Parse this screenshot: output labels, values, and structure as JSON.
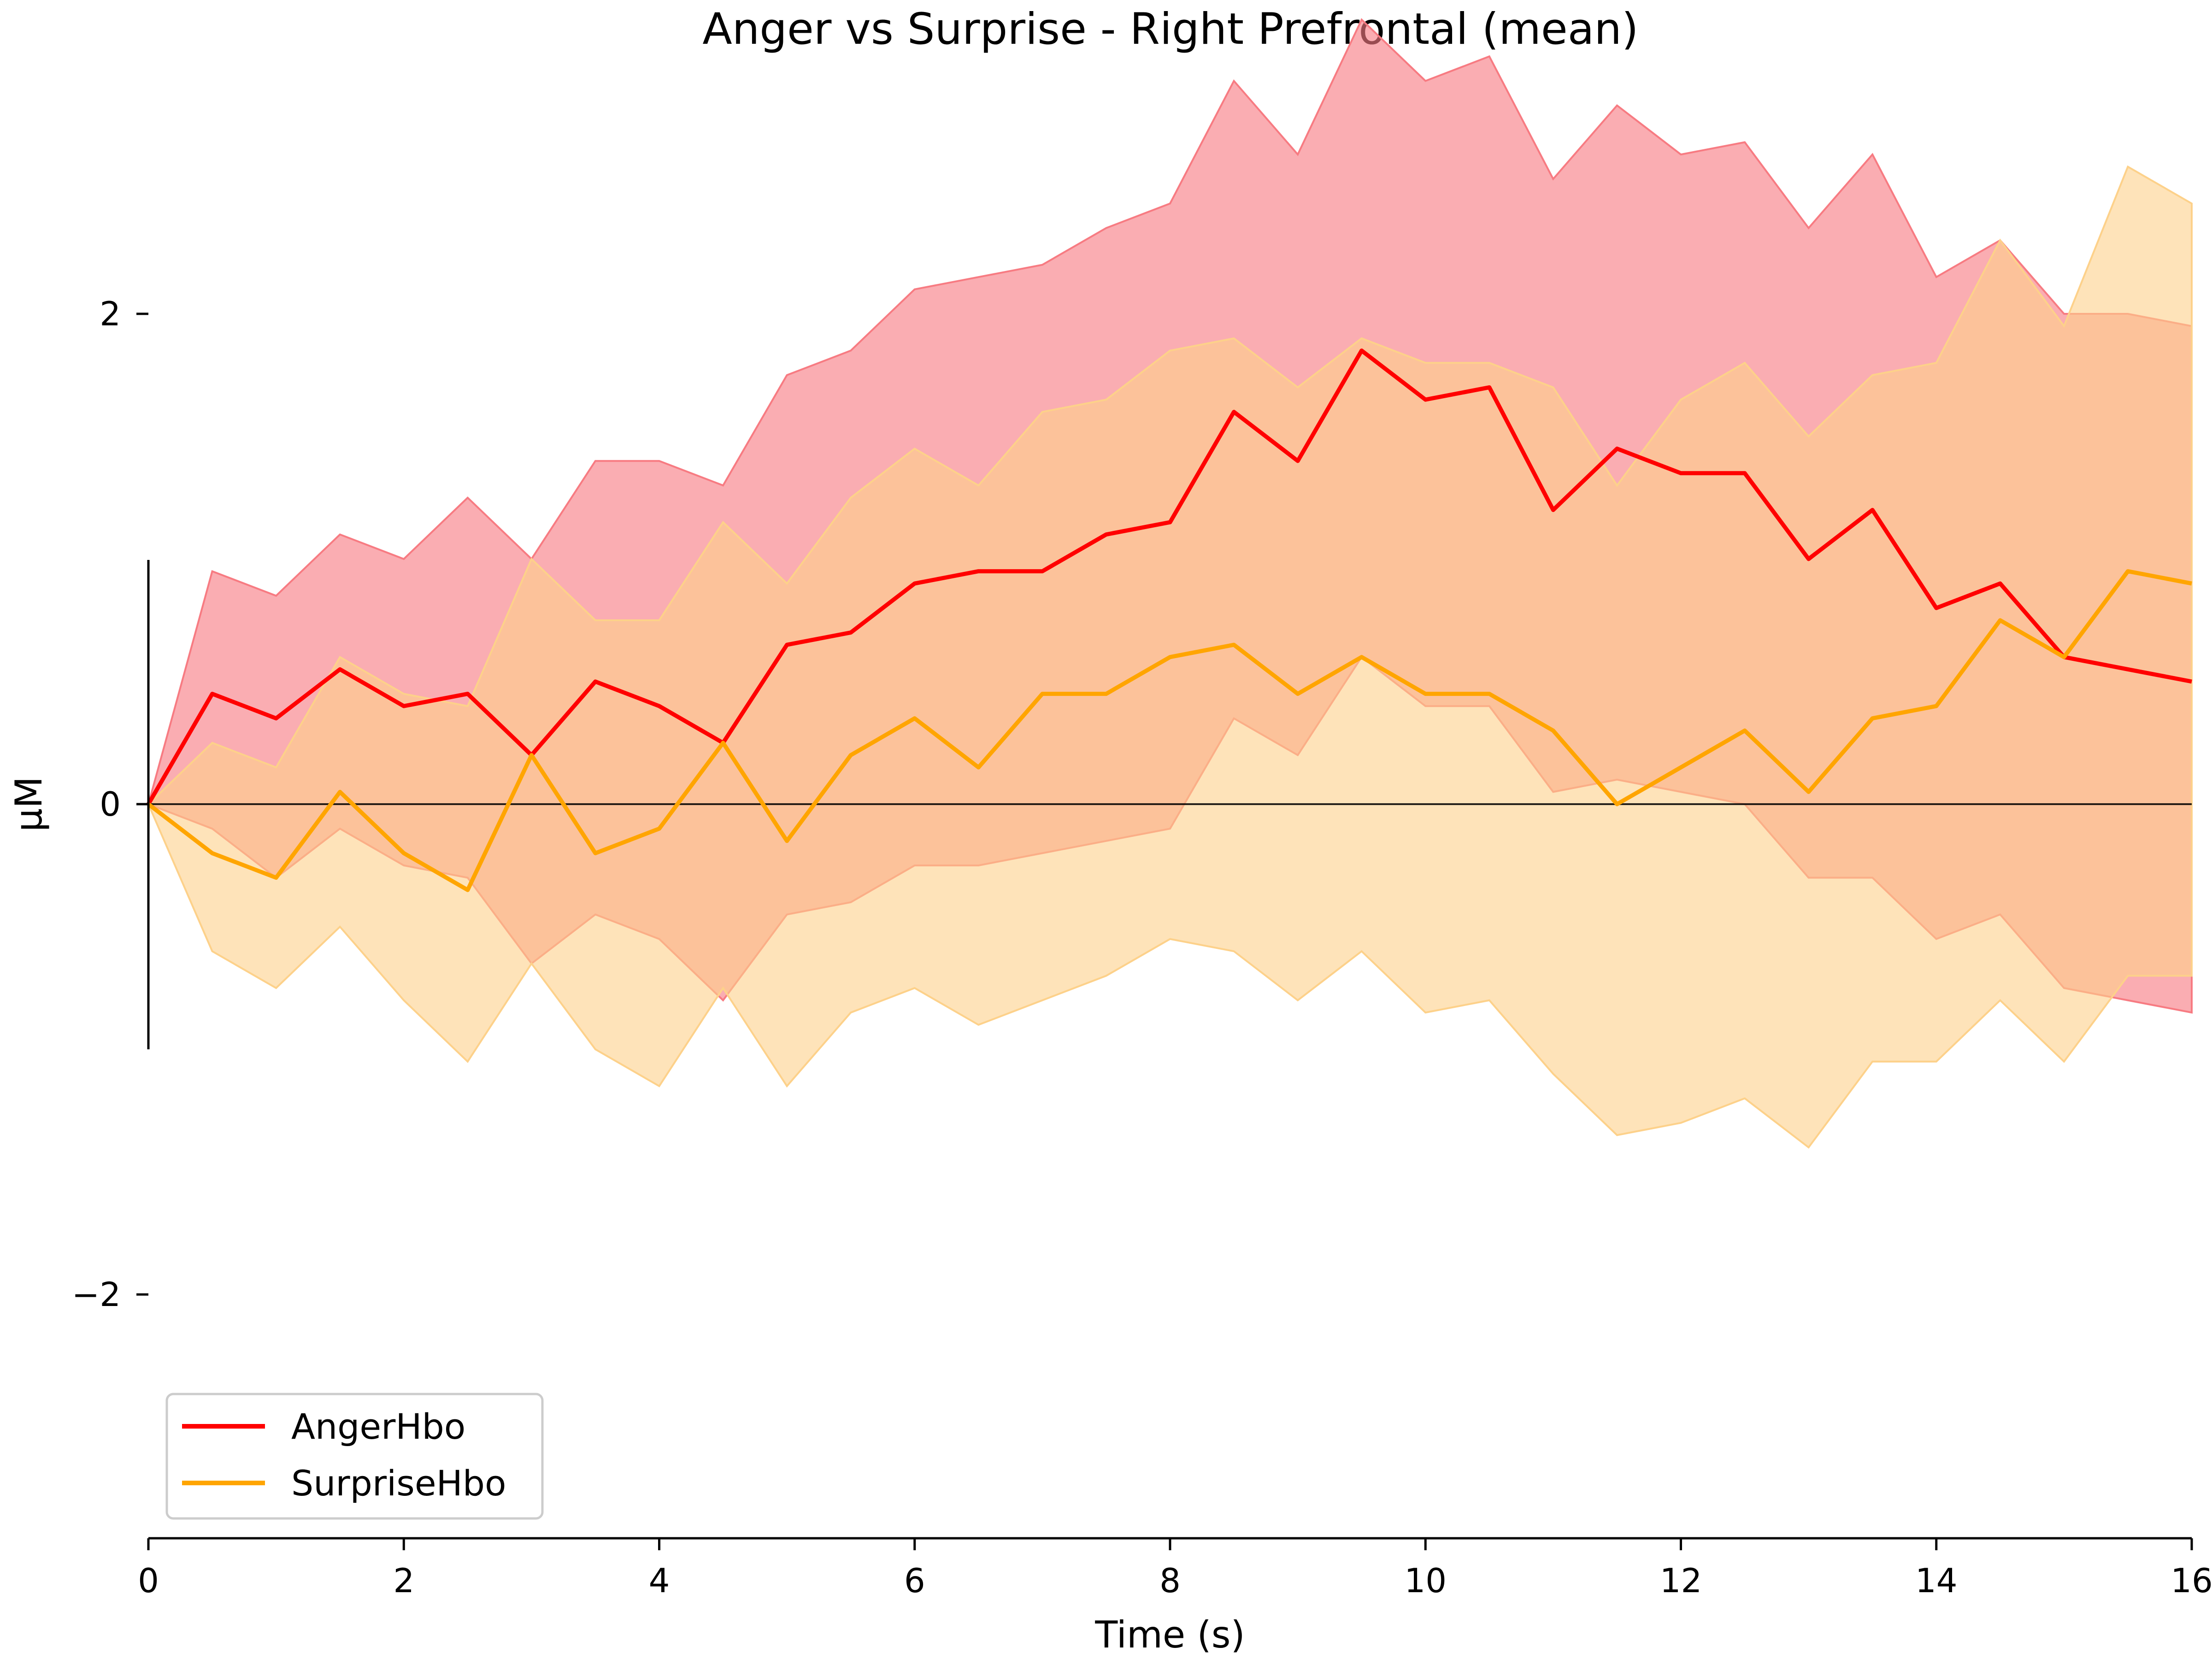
{
  "chart_data": {
    "type": "line",
    "title": "Anger vs Surprise - Right Prefrontal (mean)",
    "xlabel": "Time (s)",
    "ylabel": "µM",
    "xlim": [
      0,
      16
    ],
    "ylim": [
      -3,
      3
    ],
    "x_ticks": [
      "0",
      "2",
      "4",
      "6",
      "8",
      "10",
      "12",
      "14",
      "16"
    ],
    "y_ticks": [
      "−2",
      "0",
      "2"
    ],
    "legend_position": "bottom-left",
    "zero_line": true,
    "grid": false,
    "series": [
      {
        "name": "AngerHbo",
        "color": "#ff0000",
        "band_color": "#f77b82",
        "x": [
          0,
          0.5,
          1,
          1.5,
          2,
          2.5,
          3,
          3.5,
          4,
          4.5,
          5,
          5.5,
          6,
          6.5,
          7,
          7.5,
          8,
          8.5,
          9,
          9.5,
          10,
          10.5,
          11,
          11.5,
          12,
          12.5,
          13,
          13.5,
          14,
          14.5,
          15,
          15.5,
          16
        ],
        "values": [
          0.0,
          0.45,
          0.35,
          0.55,
          0.4,
          0.45,
          0.2,
          0.5,
          0.4,
          0.25,
          0.65,
          0.7,
          0.9,
          0.95,
          0.95,
          1.1,
          1.15,
          1.6,
          1.4,
          1.85,
          1.65,
          1.7,
          1.2,
          1.45,
          1.35,
          1.35,
          1.0,
          1.2,
          0.8,
          0.9,
          0.6,
          0.55,
          0.5
        ],
        "upper": [
          0.0,
          0.95,
          0.85,
          1.1,
          1.0,
          1.25,
          1.0,
          1.4,
          1.4,
          1.3,
          1.75,
          1.85,
          2.1,
          2.15,
          2.2,
          2.35,
          2.45,
          2.95,
          2.65,
          3.2,
          2.95,
          3.05,
          2.55,
          2.85,
          2.65,
          2.7,
          2.35,
          2.65,
          2.15,
          2.3,
          2.0,
          2.0,
          1.95
        ],
        "lower": [
          0.0,
          -0.1,
          -0.3,
          -0.1,
          -0.25,
          -0.3,
          -0.65,
          -0.45,
          -0.55,
          -0.8,
          -0.45,
          -0.4,
          -0.25,
          -0.25,
          -0.2,
          -0.15,
          -0.1,
          0.35,
          0.2,
          0.6,
          0.4,
          0.4,
          0.05,
          0.1,
          0.05,
          0.0,
          -0.3,
          -0.3,
          -0.55,
          -0.45,
          -0.75,
          -0.8,
          -0.85
        ]
      },
      {
        "name": "SurpriseHbo",
        "color": "#ffa500",
        "band_color": "#fdd18a",
        "x": [
          0,
          0.5,
          1,
          1.5,
          2,
          2.5,
          3,
          3.5,
          4,
          4.5,
          5,
          5.5,
          6,
          6.5,
          7,
          7.5,
          8,
          8.5,
          9,
          9.5,
          10,
          10.5,
          11,
          11.5,
          12,
          12.5,
          13,
          13.5,
          14,
          14.5,
          15,
          15.5,
          16
        ],
        "values": [
          0.0,
          -0.2,
          -0.3,
          0.05,
          -0.2,
          -0.35,
          0.2,
          -0.2,
          -0.1,
          0.25,
          -0.15,
          0.2,
          0.35,
          0.15,
          0.45,
          0.45,
          0.6,
          0.65,
          0.45,
          0.6,
          0.45,
          0.45,
          0.3,
          0.0,
          0.15,
          0.3,
          0.05,
          0.35,
          0.4,
          0.75,
          0.6,
          0.95,
          0.9
        ],
        "upper": [
          0.0,
          0.25,
          0.15,
          0.6,
          0.45,
          0.4,
          1.0,
          0.75,
          0.75,
          1.15,
          0.9,
          1.25,
          1.45,
          1.3,
          1.6,
          1.65,
          1.85,
          1.9,
          1.7,
          1.9,
          1.8,
          1.8,
          1.7,
          1.3,
          1.65,
          1.8,
          1.5,
          1.75,
          1.8,
          2.3,
          1.95,
          2.6,
          2.45
        ],
        "lower": [
          0.0,
          -0.6,
          -0.75,
          -0.5,
          -0.8,
          -1.05,
          -0.65,
          -1.0,
          -1.15,
          -0.75,
          -1.15,
          -0.85,
          -0.75,
          -0.9,
          -0.8,
          -0.7,
          -0.55,
          -0.6,
          -0.8,
          -0.6,
          -0.85,
          -0.8,
          -1.1,
          -1.35,
          -1.3,
          -1.2,
          -1.4,
          -1.05,
          -1.05,
          -0.8,
          -1.05,
          -0.7,
          -0.7
        ]
      }
    ]
  }
}
